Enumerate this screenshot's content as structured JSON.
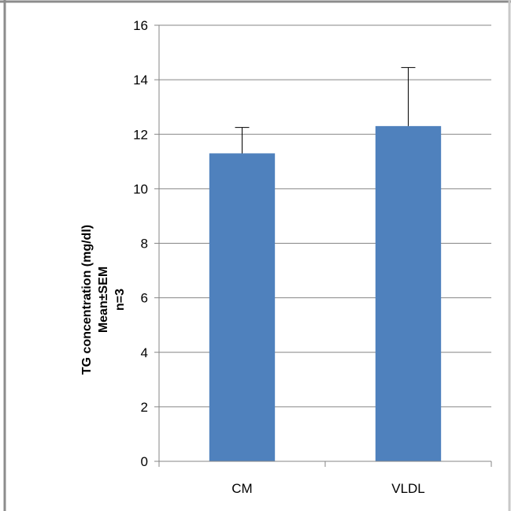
{
  "chart_data": {
    "type": "bar",
    "categories": [
      "CM",
      "VLDL"
    ],
    "series": [
      {
        "values": [
          11.3,
          12.3
        ],
        "error_plus": [
          0.95,
          2.15
        ],
        "color": "#4F81BD"
      }
    ],
    "ylabel_lines": [
      "TG concentration (mg/dl)",
      "Mean±SEM",
      "n=3"
    ],
    "xlabel": "",
    "ylim": [
      0,
      16
    ],
    "yticks": [
      "0",
      "2",
      "4",
      "6",
      "8",
      "10",
      "12",
      "14",
      "16"
    ],
    "grid": true,
    "legend": "none"
  }
}
